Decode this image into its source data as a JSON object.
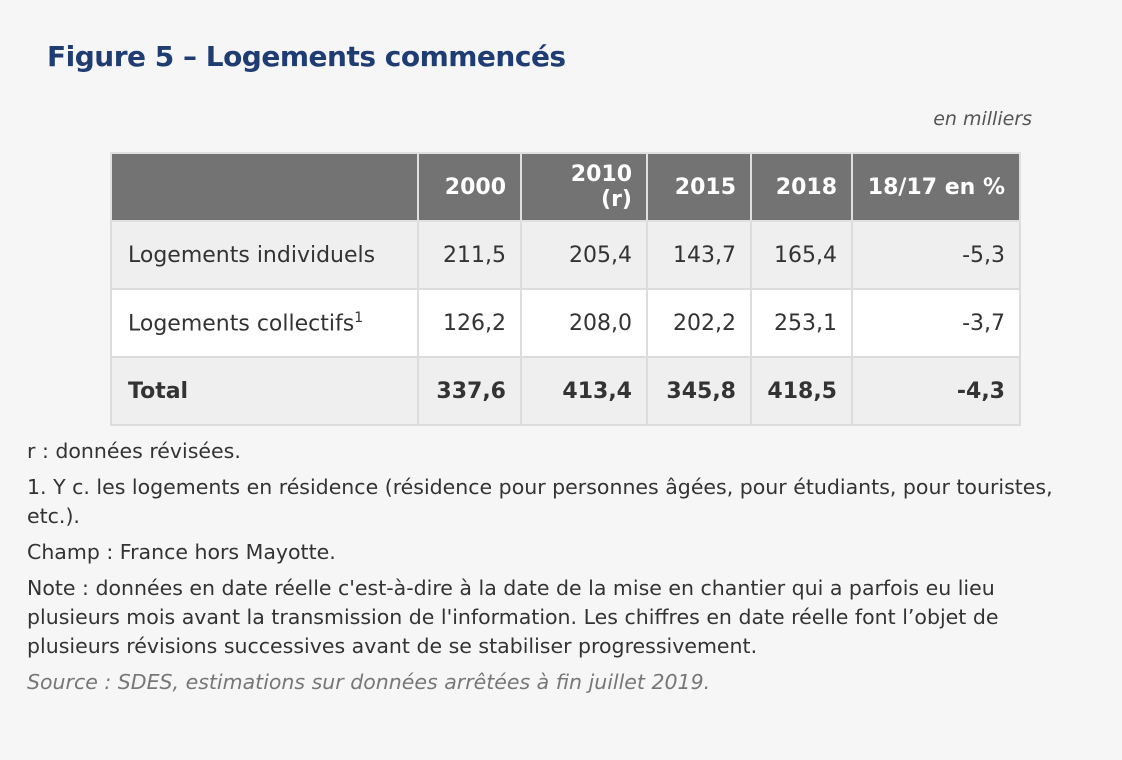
{
  "title": "Figure 5 – Logements commencés",
  "unit": "en milliers",
  "table": {
    "headers": [
      "",
      "2000",
      "2010 (r)",
      "2015",
      "2018",
      "18/17 en %"
    ],
    "rows": [
      {
        "label": "Logements individuels",
        "sup": "",
        "values": [
          "211,5",
          "205,4",
          "143,7",
          "165,4",
          "-5,3"
        ]
      },
      {
        "label": "Logements collectifs",
        "sup": "1",
        "values": [
          "126,2",
          "208,0",
          "202,2",
          "253,1",
          "-3,7"
        ]
      },
      {
        "label": "Total",
        "sup": "",
        "values": [
          "337,6",
          "413,4",
          "345,8",
          "418,5",
          "-4,3"
        ]
      }
    ]
  },
  "notes": [
    "r : données révisées.",
    "1. Y c. les logements en résidence (résidence pour personnes âgées, pour étudiants, pour touristes, etc.).",
    "Champ : France hors Mayotte.",
    "Note : données en date réelle c'est-à-dire à la date de la mise en chantier qui a parfois eu lieu plusieurs mois avant la transmission de l'information. Les chiffres en date réelle font l’objet de plusieurs révisions successives avant de se stabiliser progressivement."
  ],
  "source": "Source : SDES, estimations sur données arrêtées à fin juillet 2019."
}
